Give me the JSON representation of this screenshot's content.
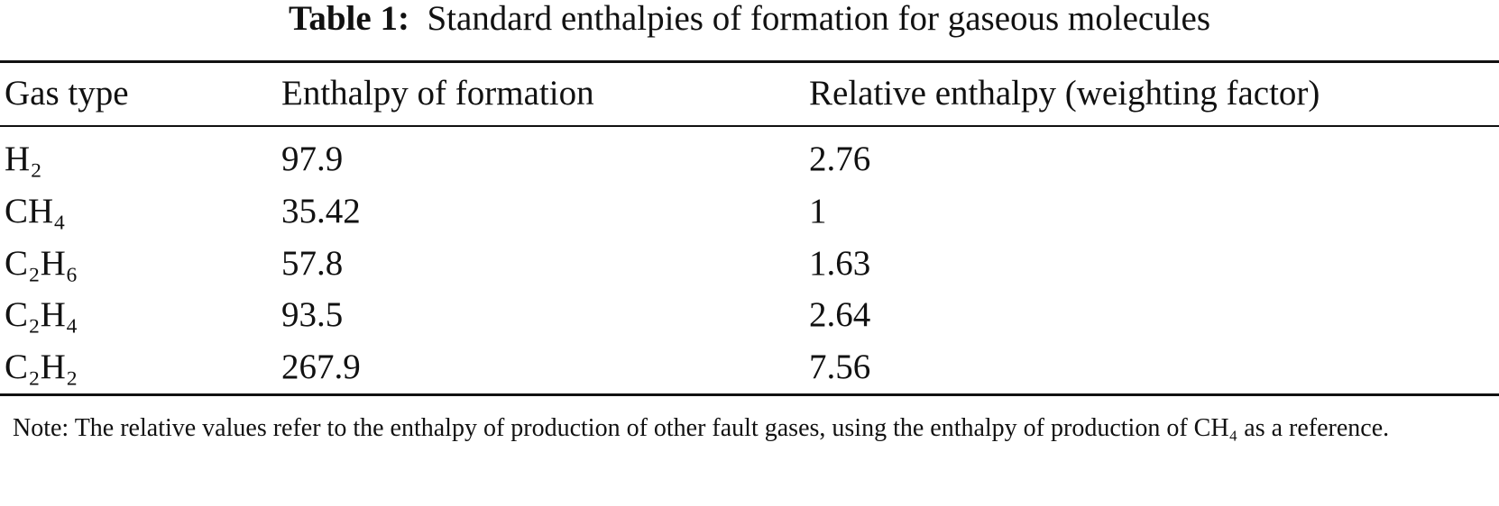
{
  "caption": {
    "label": "Table 1:",
    "text": "Standard enthalpies of formation for gaseous molecules"
  },
  "table": {
    "header": [
      "Gas type",
      "Enthalpy of formation",
      "Relative enthalpy (weighting factor)"
    ],
    "rows": [
      [
        "H₂",
        97.9,
        2.76
      ],
      [
        "CH₄",
        35.42,
        1
      ],
      [
        "C₂H₆",
        57.8,
        1.63
      ],
      [
        "C₂H₄",
        93.5,
        2.64
      ],
      [
        "C₂H₂",
        267.9,
        7.56
      ]
    ]
  },
  "note": "Note: The relative values refer to the enthalpy of production of other fault gases, using the enthalpy of production of CH₄ as a reference."
}
